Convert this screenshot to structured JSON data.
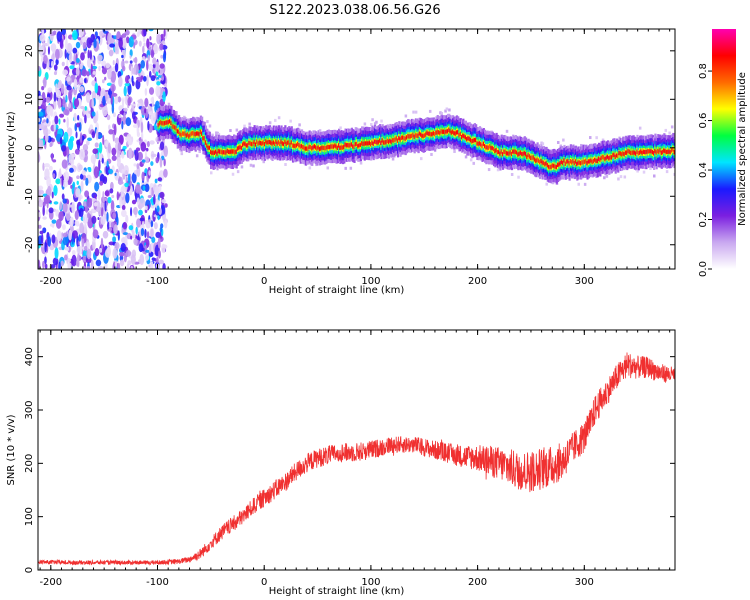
{
  "figure": {
    "title": "S122.2023.038.06.56.G26"
  },
  "chart_data": [
    {
      "type": "heatmap",
      "name": "spectrogram",
      "xlabel": "Height of straight line (km)",
      "ylabel": "Frequency (Hz)",
      "xlim": [
        -212,
        385
      ],
      "ylim": [
        -25,
        24.5
      ],
      "xticks": [
        -200,
        -100,
        0,
        100,
        200,
        300
      ],
      "yticks": [
        -20,
        -10,
        0,
        10,
        20
      ],
      "colorbar": {
        "label": "Normalized spectral amplitude",
        "range": [
          0,
          0.97
        ],
        "ticks": [
          0.0,
          0.2,
          0.4,
          0.6,
          0.8
        ],
        "colormap": [
          "#ffffff",
          "#c9a8f0",
          "#7b1fe0",
          "#1a1aff",
          "#00e5ff",
          "#00ff40",
          "#ffff00",
          "#ff6a00",
          "#ff0000",
          "#ff00b0"
        ]
      },
      "noise_region_x": [
        -212,
        -100
      ],
      "ridge": {
        "x": [
          -100,
          -90,
          -80,
          -70,
          -60,
          -50,
          -40,
          -30,
          -20,
          -10,
          0,
          20,
          40,
          60,
          80,
          100,
          120,
          140,
          160,
          170,
          180,
          200,
          220,
          240,
          260,
          270,
          280,
          300,
          320,
          340,
          360,
          385
        ],
        "y": [
          5,
          5.5,
          3,
          2.5,
          3,
          -1,
          -1,
          -1,
          0.5,
          1,
          1,
          1,
          0,
          0,
          0.5,
          1,
          1.5,
          2.5,
          3,
          3.5,
          3,
          1,
          -1,
          -1,
          -3,
          -4,
          -3,
          -3,
          -2,
          -1,
          -1,
          -0.5
        ]
      },
      "grid": false
    },
    {
      "type": "line",
      "name": "snr",
      "xlabel": "Height of straight line (km)",
      "ylabel": "SNR (10 * v/v)",
      "xlim": [
        -212,
        385
      ],
      "ylim": [
        0,
        450
      ],
      "xticks": [
        -200,
        -100,
        0,
        100,
        200,
        300
      ],
      "yticks": [
        0,
        100,
        200,
        300,
        400
      ],
      "series": [
        {
          "color": "#f03030",
          "x": [
            -212,
            -180,
            -150,
            -120,
            -100,
            -80,
            -70,
            -60,
            -50,
            -40,
            -30,
            -20,
            -10,
            0,
            10,
            20,
            30,
            40,
            50,
            60,
            70,
            80,
            90,
            100,
            120,
            140,
            160,
            180,
            200,
            220,
            240,
            250,
            260,
            270,
            280,
            290,
            300,
            305,
            310,
            320,
            330,
            340,
            350,
            360,
            370,
            385
          ],
          "y": [
            15,
            14,
            14,
            14,
            14,
            16,
            20,
            30,
            50,
            70,
            85,
            100,
            120,
            135,
            150,
            165,
            185,
            200,
            210,
            215,
            220,
            220,
            222,
            225,
            235,
            235,
            225,
            215,
            210,
            200,
            185,
            185,
            190,
            195,
            205,
            230,
            250,
            270,
            300,
            330,
            360,
            385,
            380,
            380,
            370,
            365
          ],
          "noise": [
            4,
            4,
            4,
            4,
            4,
            5,
            6,
            10,
            12,
            14,
            15,
            15,
            16,
            17,
            18,
            18,
            18,
            18,
            18,
            18,
            18,
            18,
            18,
            18,
            16,
            16,
            18,
            20,
            25,
            32,
            38,
            40,
            40,
            38,
            35,
            30,
            30,
            30,
            28,
            25,
            25,
            25,
            22,
            20,
            18,
            15
          ]
        }
      ],
      "grid": false
    }
  ]
}
